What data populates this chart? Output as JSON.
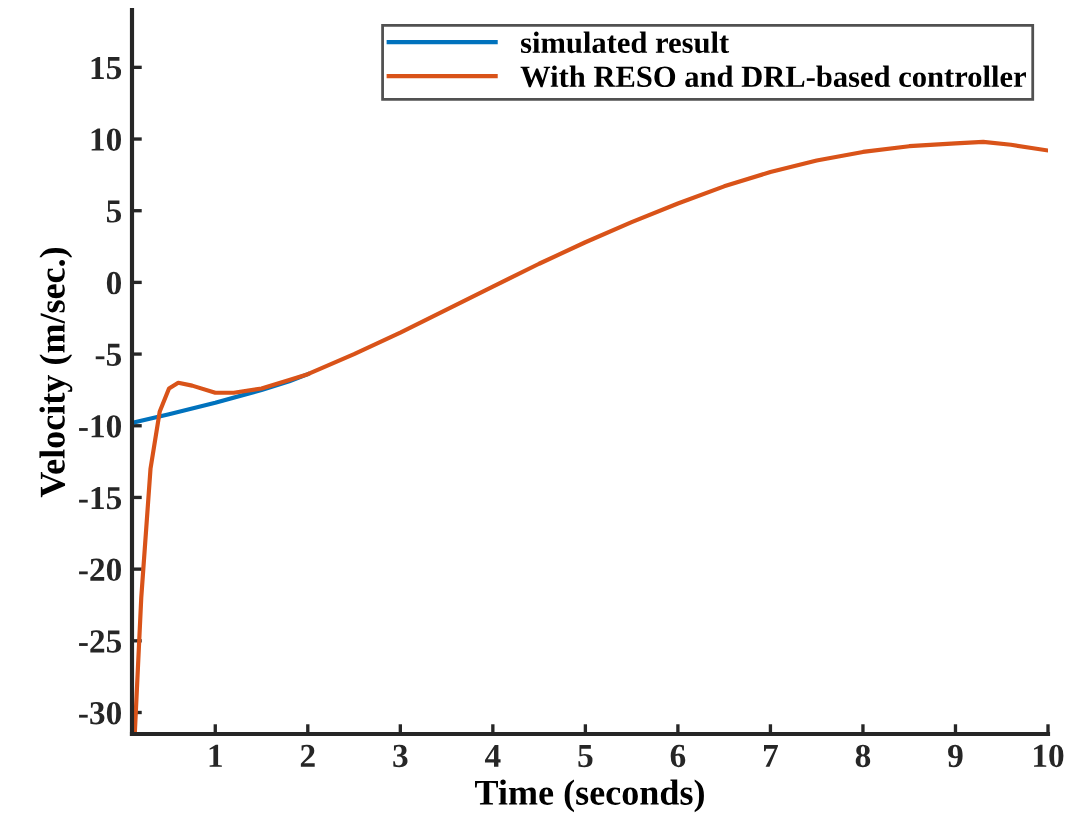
{
  "chart_data": {
    "type": "line",
    "xlabel": "Time (seconds)",
    "ylabel": "Velocity (m/sec.)",
    "xlim": [
      0.1,
      10
    ],
    "ylim": [
      -31.5,
      19
    ],
    "xticks": [
      1,
      2,
      3,
      4,
      5,
      6,
      7,
      8,
      9,
      10
    ],
    "yticks": [
      -30,
      -25,
      -20,
      -15,
      -10,
      -5,
      0,
      5,
      10,
      15
    ],
    "grid": false,
    "legend": "top right",
    "marker": "none",
    "line_style": "solid",
    "series": [
      {
        "name": "simulated result",
        "color": "#0072bd",
        "x": [
          0.1,
          0.5,
          1,
          1.5,
          1.8,
          2
        ],
        "values": [
          -9.8,
          -9.2,
          -8.4,
          -7.5,
          -6.9,
          -6.4
        ]
      },
      {
        "name": "With RESO and DRL-based controller",
        "color": "#d95319",
        "x": [
          0.13,
          0.2,
          0.3,
          0.4,
          0.5,
          0.6,
          0.75,
          1,
          1.2,
          1.5,
          1.8,
          2,
          2.5,
          3,
          3.5,
          4,
          4.5,
          5,
          5.5,
          6,
          6.5,
          7,
          7.5,
          8,
          8.5,
          9,
          9.3,
          9.6,
          10
        ],
        "values": [
          -31.5,
          -22,
          -13,
          -9,
          -7.4,
          -7.0,
          -7.2,
          -7.7,
          -7.7,
          -7.4,
          -6.8,
          -6.4,
          -5.0,
          -3.5,
          -1.9,
          -0.3,
          1.3,
          2.8,
          4.2,
          5.5,
          6.7,
          7.7,
          8.5,
          9.1,
          9.5,
          9.7,
          9.8,
          9.6,
          9.2
        ]
      }
    ]
  }
}
